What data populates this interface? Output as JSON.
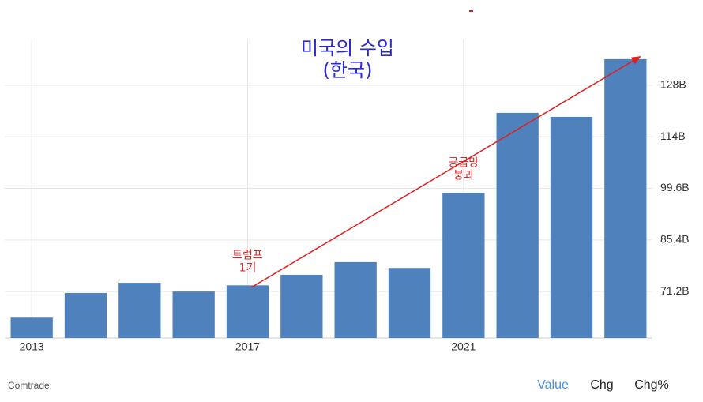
{
  "chart_data": {
    "type": "bar",
    "title": [
      "미국의 수입",
      "(한국)"
    ],
    "annotations": [
      {
        "lines": [
          "트럼프",
          "1기"
        ],
        "category": 4
      },
      {
        "lines": [
          "공급망",
          "붕괴"
        ],
        "category": 8
      }
    ],
    "categories": [
      "2013",
      null,
      null,
      null,
      "2017",
      null,
      null,
      null,
      "2021",
      null,
      null,
      null
    ],
    "values": [
      64.0,
      70.8,
      73.6,
      71.2,
      72.9,
      75.8,
      79.3,
      77.7,
      98.3,
      120.4,
      119.3,
      135.2
    ],
    "color": "#4f81bd",
    "ylim": [
      58.4,
      140.6
    ],
    "yticks": [
      {
        "value": 71.2,
        "label": "71.2B"
      },
      {
        "value": 85.4,
        "label": "85.4B"
      },
      {
        "value": 99.6,
        "label": "99.6B"
      },
      {
        "value": 113.8,
        "label": "114B"
      },
      {
        "value": 128,
        "label": "128B"
      }
    ],
    "grid": true,
    "source": "Comtrade",
    "tabs": [
      "Value",
      "Chg",
      "Chg%"
    ]
  }
}
